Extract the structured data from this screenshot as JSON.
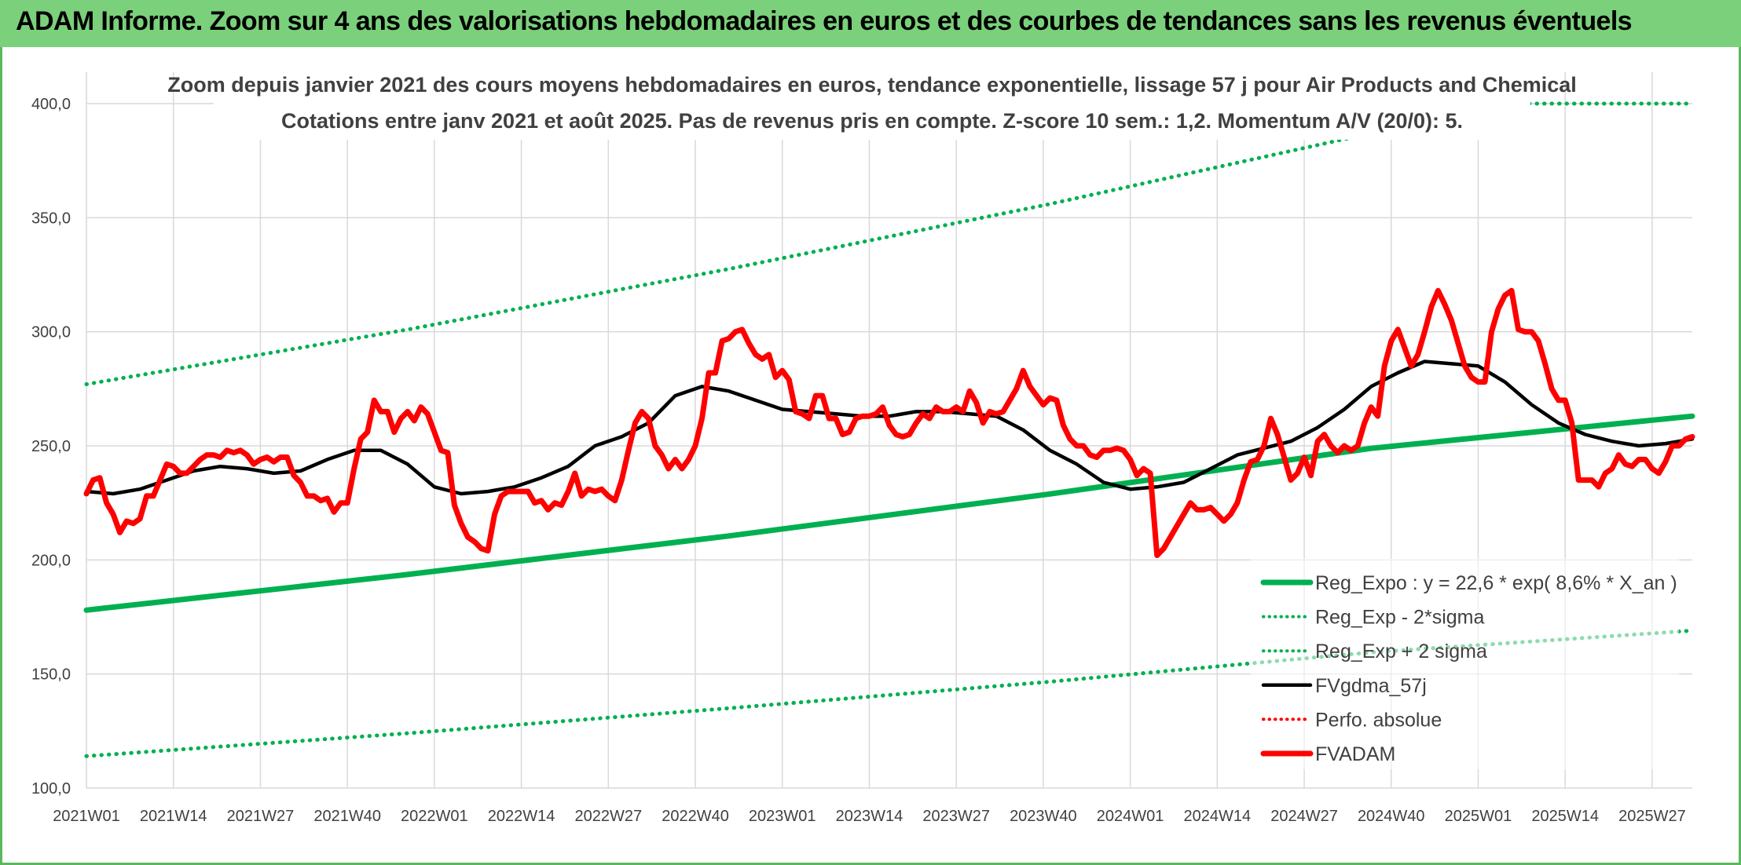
{
  "banner": {
    "title": "ADAM Informe. Zoom sur 4 ans des valorisations hebdomadaires en euros et des courbes de tendances sans les revenus éventuels"
  },
  "colors": {
    "green": "#00b050",
    "black": "#000000",
    "red": "#ff0000",
    "banner": "#7bd07b",
    "grid": "#d9d9d9",
    "text": "#404040"
  },
  "chart_data": {
    "type": "line",
    "title": "Zoom depuis janvier 2021 des cours moyens hebdomadaires en euros, tendance exponentielle, lissage 57 j pour Air Products and Chemical",
    "subtitle": "Cotations entre janv 2021 et août 2025. Pas de revenus pris en compte. Z-score 10 sem.: 1,2. Momentum A/V (20/0): 5.",
    "ylim": [
      100,
      400
    ],
    "yticks": [
      "400,0",
      "350,0",
      "300,0",
      "250,0",
      "200,0",
      "150,0",
      "100,0"
    ],
    "ytick_values": [
      400,
      350,
      300,
      250,
      200,
      150,
      100
    ],
    "xticks": [
      "2021W01",
      "2021W14",
      "2021W27",
      "2021W40",
      "2022W01",
      "2022W14",
      "2022W27",
      "2022W40",
      "2023W01",
      "2023W14",
      "2023W27",
      "2023W40",
      "2024W01",
      "2024W14",
      "2024W27",
      "2024W40",
      "2025W01",
      "2025W14",
      "2025W27"
    ],
    "grid": true,
    "legend_position": "bottom-right",
    "series": [
      {
        "name": "Reg_Expo : y = 22,6 * exp( 8,6% *  X_an )",
        "style": "solid-thick",
        "color": "#00b050",
        "x": [
          0,
          48,
          96,
          144,
          192,
          240
        ],
        "values": [
          178,
          193.6,
          210.5,
          228.9,
          248.9,
          263
        ]
      },
      {
        "name": "Reg_Exp - 2*sigma",
        "style": "dotted",
        "color": "#00b050",
        "x": [
          0,
          48,
          96,
          144,
          192,
          240
        ],
        "values": [
          114,
          124,
          135,
          146.6,
          159.5,
          169
        ]
      },
      {
        "name": "Reg_Exp + 2 sigma",
        "style": "dotted",
        "color": "#00b050",
        "x": [
          0,
          48,
          96,
          144,
          192,
          214,
          240
        ],
        "values": [
          277,
          301,
          327.5,
          356,
          387,
          400,
          400
        ]
      },
      {
        "name": "FVgdma_57j",
        "style": "solid",
        "color": "#000000",
        "x": [
          0,
          4,
          8,
          12,
          16,
          20,
          24,
          28,
          32,
          36,
          40,
          44,
          48,
          52,
          56,
          60,
          64,
          68,
          72,
          76,
          80,
          84,
          88,
          92,
          96,
          100,
          104,
          108,
          112,
          116,
          120,
          124,
          128,
          132,
          136,
          140,
          144,
          148,
          152,
          156,
          160,
          164,
          168,
          172,
          176,
          180,
          184,
          188,
          192,
          196,
          200,
          204,
          208,
          212,
          216,
          220,
          224,
          228,
          232,
          236,
          240
        ],
        "values": [
          230,
          229,
          231,
          235,
          239,
          241,
          240,
          238,
          239,
          244,
          248,
          248,
          242,
          232,
          229,
          230,
          232,
          236,
          241,
          250,
          254,
          260,
          272,
          276,
          274,
          270,
          266,
          265,
          264,
          263,
          263,
          265,
          265,
          264,
          263,
          257,
          248,
          242,
          234,
          231,
          232,
          234,
          240,
          246,
          249,
          252,
          258,
          266,
          276,
          282,
          287,
          286,
          285,
          278,
          268,
          260,
          255,
          252,
          250,
          251,
          253
        ]
      },
      {
        "name": "Perfo. absolue",
        "style": "dotted",
        "color": "#ff0000",
        "x": [],
        "values": []
      },
      {
        "name": "FVADAM",
        "style": "solid-thick",
        "color": "#ff0000",
        "x": [
          0,
          1,
          2,
          3,
          4,
          5,
          6,
          7,
          8,
          9,
          10,
          11,
          12,
          13,
          14,
          15,
          16,
          17,
          18,
          19,
          20,
          21,
          22,
          23,
          24,
          25,
          26,
          27,
          28,
          29,
          30,
          31,
          32,
          33,
          34,
          35,
          36,
          37,
          38,
          39,
          40,
          41,
          42,
          43,
          44,
          45,
          46,
          47,
          48,
          49,
          50,
          51,
          52,
          53,
          54,
          55,
          56,
          57,
          58,
          59,
          60,
          61,
          62,
          63,
          64,
          65,
          66,
          67,
          68,
          69,
          70,
          71,
          72,
          73,
          74,
          75,
          76,
          77,
          78,
          79,
          80,
          81,
          82,
          83,
          84,
          85,
          86,
          87,
          88,
          89,
          90,
          91,
          92,
          93,
          94,
          95,
          96,
          97,
          98,
          99,
          100,
          101,
          102,
          103,
          104,
          105,
          106,
          107,
          108,
          109,
          110,
          111,
          112,
          113,
          114,
          115,
          116,
          117,
          118,
          119,
          120,
          121,
          122,
          123,
          124,
          125,
          126,
          127,
          128,
          129,
          130,
          131,
          132,
          133,
          134,
          135,
          136,
          137,
          138,
          139,
          140,
          141,
          142,
          143,
          144,
          145,
          146,
          147,
          148,
          149,
          150,
          151,
          152,
          153,
          154,
          155,
          156,
          157,
          158,
          159,
          160,
          161,
          162,
          163,
          164,
          165,
          166,
          167,
          168,
          169,
          170,
          171,
          172,
          173,
          174,
          175,
          176,
          177,
          178,
          179,
          180,
          181,
          182,
          183,
          184,
          185,
          186,
          187,
          188,
          189,
          190,
          191,
          192,
          193,
          194,
          195,
          196,
          197,
          198,
          199,
          200,
          201,
          202,
          203,
          204,
          205,
          206,
          207,
          208,
          209,
          210,
          211,
          212,
          213,
          214,
          215,
          216,
          217,
          218,
          219,
          220,
          221,
          222,
          223,
          224,
          225,
          226,
          227,
          228,
          229,
          230,
          231,
          232,
          233,
          234,
          235,
          236,
          237,
          238,
          239,
          240
        ],
        "values": [
          229,
          235,
          236,
          225,
          220,
          212,
          217,
          216,
          218,
          228,
          228,
          235,
          242,
          241,
          238,
          238,
          241,
          244,
          246,
          246,
          245,
          248,
          247,
          248,
          246,
          242,
          244,
          245,
          243,
          245,
          245,
          237,
          234,
          228,
          228,
          226,
          227,
          221,
          225,
          225,
          240,
          253,
          256,
          270,
          265,
          265,
          256,
          262,
          265,
          261,
          267,
          264,
          256,
          248,
          247,
          224,
          216,
          210,
          208,
          205,
          204,
          220,
          228,
          230,
          230,
          230,
          230,
          225,
          226,
          222,
          225,
          224,
          230,
          238,
          228,
          231,
          230,
          231,
          228,
          226,
          235,
          248,
          260,
          265,
          262,
          250,
          246,
          240,
          244,
          240,
          244,
          250,
          262,
          282,
          282,
          296,
          297,
          300,
          301,
          295,
          290,
          288,
          290,
          280,
          283,
          279,
          265,
          264,
          262,
          272,
          272,
          262,
          262,
          255,
          256,
          262,
          263,
          263,
          264,
          267,
          259,
          255,
          254,
          255,
          260,
          264,
          262,
          267,
          265,
          265,
          267,
          265,
          274,
          269,
          260,
          265,
          264,
          265,
          270,
          275,
          283,
          276,
          272,
          268,
          271,
          270,
          259,
          253,
          250,
          250,
          246,
          245,
          248,
          248,
          249,
          248,
          244,
          237,
          240,
          238,
          202,
          205,
          210,
          215,
          220,
          225,
          222,
          222,
          223,
          220,
          217,
          220,
          225,
          235,
          243,
          244,
          250,
          262,
          255,
          245,
          235,
          238,
          245,
          237,
          252,
          255,
          250,
          247,
          250,
          248,
          250,
          260,
          267,
          263,
          285,
          296,
          301,
          293,
          285,
          290,
          300,
          311,
          318,
          312,
          305,
          295,
          285,
          280,
          278,
          278,
          300,
          310,
          316,
          318,
          301,
          300,
          300,
          296,
          286,
          275,
          270,
          270,
          260,
          235,
          235,
          235,
          232,
          238,
          240,
          246,
          242,
          241,
          244,
          244,
          240,
          238,
          243,
          250,
          250,
          253,
          254
        ]
      }
    ]
  }
}
